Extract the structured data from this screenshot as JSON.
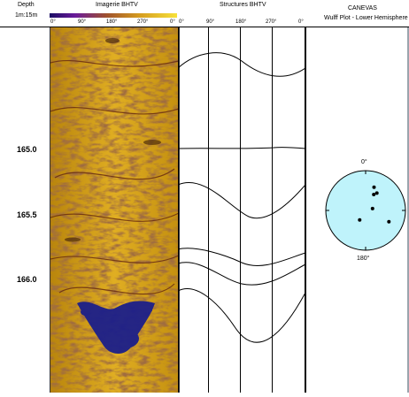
{
  "header": {
    "depth_title": "Depth",
    "scale": "1m:15m",
    "image_title": "Imagerie BHTV",
    "image_ticks": [
      "0°",
      "90°",
      "180°",
      "270°",
      "0°"
    ],
    "struct_title": "Structures BHTV",
    "struct_ticks": [
      "0°",
      "90°",
      "180°",
      "270°",
      "0°"
    ],
    "canevas_title": "CANEVAS",
    "canevas_subtitle": "Wulff Plot - Lower Hemisphere"
  },
  "depth_labels": [
    "165.0",
    "165.5",
    "166.0"
  ],
  "stereonet": {
    "top_label": "0°",
    "bottom_label": "180°",
    "fill_color": "#bff3fb",
    "poles": [
      {
        "azimuth_deg": 20,
        "radius_frac": 0.62
      },
      {
        "azimuth_deg": 27,
        "radius_frac": 0.45
      },
      {
        "azimuth_deg": 33,
        "radius_frac": 0.52
      },
      {
        "azimuth_deg": 75,
        "radius_frac": 0.18
      },
      {
        "azimuth_deg": 116,
        "radius_frac": 0.65
      },
      {
        "azimuth_deg": 212,
        "radius_frac": 0.28
      }
    ]
  },
  "colors": {
    "image_base": "#c8920f",
    "image_dark": "#5a2a12",
    "cavity": "#1c1f8a",
    "track_line": "#000000"
  }
}
